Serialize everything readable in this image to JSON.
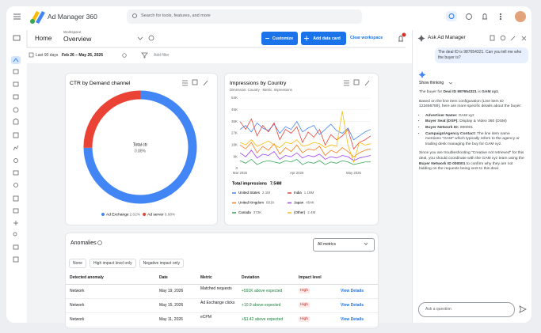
{
  "header": {
    "product": "Ad Manager 360",
    "search_placeholder": "Search for tools, features, and more"
  },
  "toolbar": {
    "home": "Home",
    "workspace_label": "Workspace",
    "workspace": "Overview",
    "customize": "Customize",
    "add_data_card": "Add data card",
    "clear_workspace": "Clear workspace"
  },
  "filters": {
    "date_range_label": "Last 90 days",
    "date_range": "Feb 26 – May 26, 2026",
    "add_filter": "Add filter"
  },
  "chart_data": [
    {
      "type": "pie",
      "title": "CTR by Demand channel",
      "center_label": "Total ctr",
      "center_value": "0.88%",
      "categories": [
        "Ad Exchange",
        "Ad server"
      ],
      "values": [
        2.02,
        0.68
      ],
      "value_labels": [
        "2.02%",
        "0.68%"
      ],
      "colors": [
        "#4285f4",
        "#ea4335"
      ]
    },
    {
      "type": "line",
      "title": "Impressions by Country",
      "subtitle": "Dimension: Country · Metric: Impressions",
      "total_label": "Total impressions",
      "total_value": "7.54M",
      "categories": [
        "Mar 2026",
        null,
        null,
        null,
        null,
        null,
        null,
        null,
        null,
        null,
        "Apr 2026",
        null,
        null,
        null,
        null,
        null,
        null,
        null,
        null,
        null,
        "May 2026",
        null,
        null,
        null
      ],
      "ylim": [
        0,
        54000
      ],
      "yticks": [
        0,
        {
          "value": 9000,
          "label": "9K"
        },
        {
          "value": 18000,
          "label": "18K"
        },
        {
          "value": 27000,
          "label": "27K"
        },
        {
          "value": 36000,
          "label": "36K"
        },
        {
          "value": 45000,
          "label": "45K"
        },
        {
          "value": 54000,
          "label": "54K"
        }
      ],
      "grid": true,
      "series": [
        {
          "name": "United States",
          "total": "2.1M",
          "color": "#4285f4",
          "values": [
            30000,
            33000,
            28000,
            35000,
            31000,
            29000,
            34000,
            27000,
            32000,
            30000,
            36000,
            28000,
            31000,
            33000,
            26000,
            30000,
            34000,
            29000,
            27000,
            31000,
            22000,
            25000,
            28000,
            30000
          ]
        },
        {
          "name": "India",
          "total": "1.18M",
          "color": "#ea4335",
          "values": [
            36000,
            30000,
            38000,
            25000,
            33000,
            28000,
            35000,
            22000,
            30000,
            27000,
            32000,
            20000,
            28000,
            24000,
            30000,
            18000,
            26000,
            22000,
            25000,
            30000,
            15000,
            20000,
            22000,
            25000
          ]
        },
        {
          "name": "United Kingdom",
          "total": "681K",
          "color": "#fa7b17",
          "values": [
            18000,
            15000,
            20000,
            12000,
            17000,
            14000,
            19000,
            11000,
            16000,
            13000,
            18000,
            12000,
            15000,
            14000,
            17000,
            10000,
            14000,
            12000,
            16000,
            13000,
            9000,
            12000,
            14000,
            15000
          ]
        },
        {
          "name": "Japan",
          "total": "454K",
          "color": "#a142f4",
          "values": [
            12000,
            9000,
            14000,
            8000,
            11000,
            10000,
            13000,
            7000,
            10000,
            9000,
            12000,
            8000,
            10000,
            9000,
            11000,
            7000,
            9000,
            8000,
            10000,
            9000,
            6000,
            8000,
            9000,
            10000
          ]
        },
        {
          "name": "Canada",
          "total": "373K",
          "color": "#34a853",
          "values": [
            6000,
            4000,
            7000,
            3000,
            5000,
            6000,
            5000,
            4000,
            6000,
            5000,
            7000,
            3000,
            5000,
            4000,
            6000,
            3000,
            5000,
            4000,
            6000,
            5000,
            3000,
            4000,
            5000,
            5000
          ]
        },
        {
          "name": "(Other)",
          "total": "2.4M",
          "color": "#fbbc04",
          "values": [
            20000,
            18000,
            22000,
            17000,
            19000,
            21000,
            18000,
            16000,
            20000,
            19000,
            22000,
            17000,
            18000,
            20000,
            19000,
            16000,
            18000,
            17000,
            44000,
            18000,
            5000,
            20000,
            18000,
            19000
          ]
        }
      ]
    }
  ],
  "anomalies": {
    "title": "Anomalies",
    "metric_select": "All metrics",
    "chips": [
      "None",
      "High impact level only",
      "Negative impact only"
    ],
    "columns": [
      "Detected anomaly",
      "Date",
      "Metric",
      "Deviation",
      "Impact level"
    ],
    "rows": [
      [
        "Network",
        "May 19, 2026",
        "Matched requests",
        "+591K above expected",
        "High",
        "View Details"
      ],
      [
        "Network",
        "May 15, 2026",
        "Ad Exchange clicks",
        "+10.9 above expected",
        "High",
        "View Details"
      ],
      [
        "Network",
        "May 11, 2026",
        "eCPM",
        "+$1.42 above expected",
        "High",
        "View Details"
      ]
    ]
  },
  "assistant": {
    "title": "Ask Ad Manager",
    "user_message": "The deal ID is 987654321. Can you tell me who the buyer is?",
    "thinking": "Show thinking",
    "answer": {
      "intro": [
        "The buyer for ",
        "Deal ID 987654321",
        " is ",
        "GAM xyz",
        "."
      ],
      "details": "Based on the line item configuration (Line item ID 123456789), here are more specific details about the buyer:",
      "bullets": [
        [
          "Advertiser Name:",
          " GAM xyz"
        ],
        [
          "Buyer Seat (DSP):",
          " Display & Video 360 (DSM)"
        ],
        [
          "Buyer Network ID:",
          " 000001"
        ],
        [
          "Campaign/Agency Contact:",
          " The line item name mentions \"GAM\" which typically refers to the agency or trading desk managing the buy for GAM xyz."
        ]
      ],
      "closing": [
        "Since you are troubleshooting \"Creative not retrieved\" for this deal, you should coordinate with the GAM xyz team using the ",
        "Buyer Network ID 000001",
        " to confirm why they are not bidding on the requests being sent to this deal."
      ]
    },
    "input_placeholder": "Ask a question"
  }
}
